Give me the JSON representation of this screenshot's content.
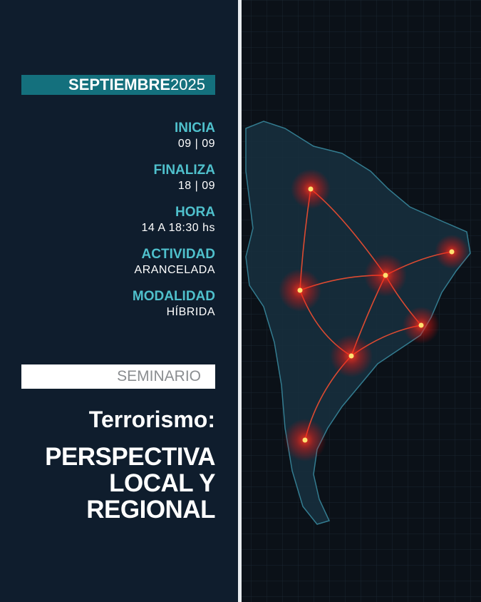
{
  "header": {
    "month": "SEPTIEMBRE",
    "year": "2025"
  },
  "details": [
    {
      "label": "INICIA",
      "value": "09 | 09"
    },
    {
      "label": "FINALIZA",
      "value": "18 | 09"
    },
    {
      "label": "HORA",
      "value": "14 A 18:30 hs"
    },
    {
      "label": "ACTIVIDAD",
      "value": "ARANCELADA"
    },
    {
      "label": "MODALIDAD",
      "value": "HÍBRIDA"
    }
  ],
  "type": "SEMINARIO",
  "title": {
    "line1": "Terrorismo:",
    "line2": "PERSPECTIVA",
    "line3": "LOCAL Y",
    "line4": "REGIONAL"
  },
  "colors": {
    "panel": "#0f1d2d",
    "accent": "#14707d",
    "label": "#4fc0cc",
    "glow": "#ff2a1a"
  }
}
